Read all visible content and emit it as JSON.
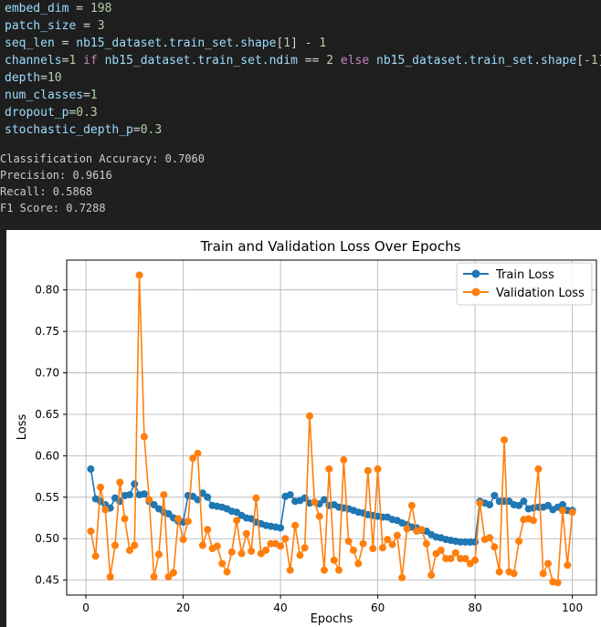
{
  "code": {
    "embed_dim": {
      "name": "embed_dim",
      "op": " = ",
      "value": "198"
    },
    "patch_size": {
      "name": "patch_size",
      "op": " = ",
      "value": "3"
    },
    "seq_len": {
      "name": "seq_len",
      "op": " = ",
      "expr": "nb15_dataset.train_set.shape",
      "idx": "1",
      "minus": " - ",
      "value": "1"
    },
    "channels": {
      "name": "channels",
      "op": "=",
      "value": "1",
      "kw_if": "if",
      "cond": "nb15_dataset.train_set.ndim",
      "eq": " == ",
      "cond_value": "2",
      "kw_else": "else",
      "alt": "nb15_dataset.train_set.shape",
      "alt_idx": "-1"
    },
    "depth": {
      "name": "depth",
      "op": "=",
      "value": "10"
    },
    "num_classes": {
      "name": "num_classes",
      "op": "=",
      "value": "1"
    },
    "dropout_p": {
      "name": "dropout_p",
      "op": "=",
      "value": "0.3"
    },
    "stochastic_depth_p": {
      "name": "stochastic_depth_p",
      "op": "=",
      "value": "0.3"
    }
  },
  "output": {
    "lines": [
      "Classification Accuracy: 0.7060",
      "Precision: 0.9616",
      "Recall: 0.5868",
      "F1 Score: 0.7288"
    ]
  },
  "chart_data": {
    "type": "line",
    "title": "Train and Validation Loss Over Epochs",
    "xlabel": "Epochs",
    "ylabel": "Loss",
    "xlim": [
      -3.95,
      104.95
    ],
    "ylim": [
      0.432,
      0.836
    ],
    "xticks": [
      0,
      20,
      40,
      60,
      80,
      100
    ],
    "yticks": [
      0.45,
      0.5,
      0.55,
      0.6,
      0.65,
      0.7,
      0.75,
      0.8
    ],
    "grid": true,
    "legend": "top-right",
    "series": [
      {
        "name": "Train Loss",
        "color": "#1f77b4",
        "x": [
          1,
          2,
          3,
          4,
          5,
          6,
          7,
          8,
          9,
          10,
          11,
          12,
          13,
          14,
          15,
          16,
          17,
          18,
          19,
          20,
          21,
          22,
          23,
          24,
          25,
          26,
          27,
          28,
          29,
          30,
          31,
          32,
          33,
          34,
          35,
          36,
          37,
          38,
          39,
          40,
          41,
          42,
          43,
          44,
          45,
          46,
          47,
          48,
          49,
          50,
          51,
          52,
          53,
          54,
          55,
          56,
          57,
          58,
          59,
          60,
          61,
          62,
          63,
          64,
          65,
          66,
          67,
          68,
          69,
          70,
          71,
          72,
          73,
          74,
          75,
          76,
          77,
          78,
          79,
          80,
          81,
          82,
          83,
          84,
          85,
          86,
          87,
          88,
          89,
          90,
          91,
          92,
          93,
          94,
          95,
          96,
          97,
          98,
          99,
          100
        ],
        "values": [
          0.584,
          0.548,
          0.545,
          0.541,
          0.537,
          0.549,
          0.545,
          0.552,
          0.553,
          0.566,
          0.553,
          0.554,
          0.545,
          0.541,
          0.536,
          0.532,
          0.53,
          0.525,
          0.521,
          0.52,
          0.552,
          0.551,
          0.547,
          0.555,
          0.55,
          0.54,
          0.539,
          0.538,
          0.536,
          0.533,
          0.532,
          0.528,
          0.525,
          0.524,
          0.52,
          0.518,
          0.516,
          0.515,
          0.514,
          0.513,
          0.551,
          0.553,
          0.545,
          0.546,
          0.549,
          0.543,
          0.544,
          0.542,
          0.547,
          0.54,
          0.541,
          0.538,
          0.537,
          0.536,
          0.534,
          0.532,
          0.531,
          0.529,
          0.528,
          0.527,
          0.526,
          0.526,
          0.523,
          0.522,
          0.519,
          0.517,
          0.514,
          0.513,
          0.51,
          0.509,
          0.505,
          0.502,
          0.501,
          0.499,
          0.498,
          0.497,
          0.496,
          0.496,
          0.496,
          0.496,
          0.545,
          0.543,
          0.541,
          0.552,
          0.545,
          0.545,
          0.545,
          0.541,
          0.54,
          0.545,
          0.536,
          0.537,
          0.538,
          0.538,
          0.54,
          0.535,
          0.538,
          0.541,
          0.534,
          0.534
        ]
      },
      {
        "name": "Validation Loss",
        "color": "#ff7f0e",
        "x": [
          1,
          2,
          3,
          4,
          5,
          6,
          7,
          8,
          9,
          10,
          11,
          12,
          13,
          14,
          15,
          16,
          17,
          18,
          19,
          20,
          21,
          22,
          23,
          24,
          25,
          26,
          27,
          28,
          29,
          30,
          31,
          32,
          33,
          34,
          35,
          36,
          37,
          38,
          39,
          40,
          41,
          42,
          43,
          44,
          45,
          46,
          47,
          48,
          49,
          50,
          51,
          52,
          53,
          54,
          55,
          56,
          57,
          58,
          59,
          60,
          61,
          62,
          63,
          64,
          65,
          66,
          67,
          68,
          69,
          70,
          71,
          72,
          73,
          74,
          75,
          76,
          77,
          78,
          79,
          80,
          81,
          82,
          83,
          84,
          85,
          86,
          87,
          88,
          89,
          90,
          91,
          92,
          93,
          94,
          95,
          96,
          97,
          98,
          99,
          100
        ],
        "values": [
          0.509,
          0.479,
          0.562,
          0.535,
          0.454,
          0.492,
          0.568,
          0.524,
          0.486,
          0.492,
          0.818,
          0.623,
          0.547,
          0.454,
          0.481,
          0.553,
          0.454,
          0.459,
          0.524,
          0.499,
          0.521,
          0.597,
          0.603,
          0.492,
          0.511,
          0.488,
          0.491,
          0.47,
          0.46,
          0.484,
          0.522,
          0.482,
          0.506,
          0.485,
          0.549,
          0.482,
          0.486,
          0.494,
          0.494,
          0.491,
          0.5,
          0.462,
          0.516,
          0.48,
          0.489,
          0.648,
          0.544,
          0.527,
          0.462,
          0.584,
          0.474,
          0.462,
          0.595,
          0.497,
          0.486,
          0.47,
          0.494,
          0.582,
          0.488,
          0.584,
          0.489,
          0.499,
          0.493,
          0.504,
          0.453,
          0.512,
          0.54,
          0.509,
          0.511,
          0.494,
          0.456,
          0.482,
          0.486,
          0.476,
          0.476,
          0.483,
          0.476,
          0.476,
          0.47,
          0.474,
          0.543,
          0.499,
          0.501,
          0.49,
          0.46,
          0.619,
          0.46,
          0.458,
          0.497,
          0.523,
          0.524,
          0.522,
          0.584,
          0.458,
          0.47,
          0.448,
          0.447,
          0.534,
          0.468,
          0.532
        ]
      }
    ]
  }
}
